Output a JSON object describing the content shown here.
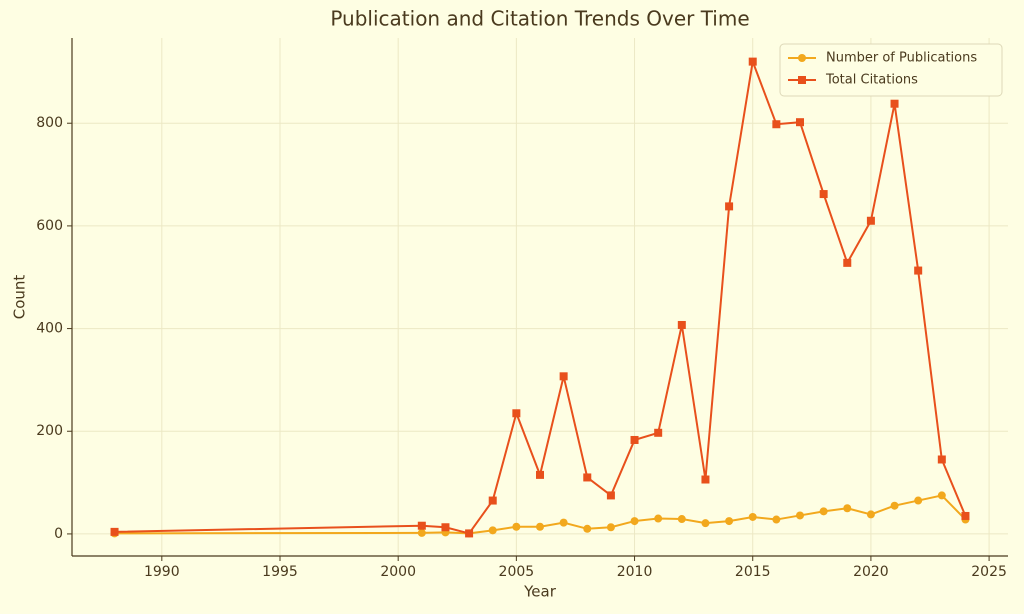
{
  "chart_data": {
    "type": "line",
    "title": "Publication and Citation Trends Over Time",
    "xlabel": "Year",
    "ylabel": "Count",
    "x": [
      1988,
      2001,
      2002,
      2003,
      2004,
      2005,
      2006,
      2007,
      2008,
      2009,
      2010,
      2011,
      2012,
      2013,
      2014,
      2015,
      2016,
      2017,
      2018,
      2019,
      2020,
      2021,
      2022,
      2023,
      2024
    ],
    "series": [
      {
        "name": "Number of Publications",
        "color": "#f2a81d",
        "marker": "circle",
        "values": [
          1,
          2,
          3,
          1,
          7,
          14,
          14,
          22,
          10,
          13,
          25,
          30,
          29,
          21,
          25,
          33,
          28,
          36,
          44,
          50,
          38,
          55,
          65,
          75,
          28
        ]
      },
      {
        "name": "Total Citations",
        "color": "#e8501c",
        "marker": "square",
        "values": [
          4,
          16,
          13,
          1,
          65,
          235,
          115,
          307,
          110,
          75,
          183,
          197,
          407,
          106,
          638,
          920,
          798,
          802,
          662,
          528,
          610,
          838,
          513,
          145,
          35
        ]
      }
    ],
    "xlim": [
      1986.2,
      2025.8
    ],
    "ylim": [
      -43,
      966
    ],
    "xticks": [
      1990,
      1995,
      2000,
      2005,
      2010,
      2015,
      2020,
      2025
    ],
    "yticks": [
      0,
      200,
      400,
      600,
      800
    ],
    "grid": true,
    "legend": "upper right"
  }
}
